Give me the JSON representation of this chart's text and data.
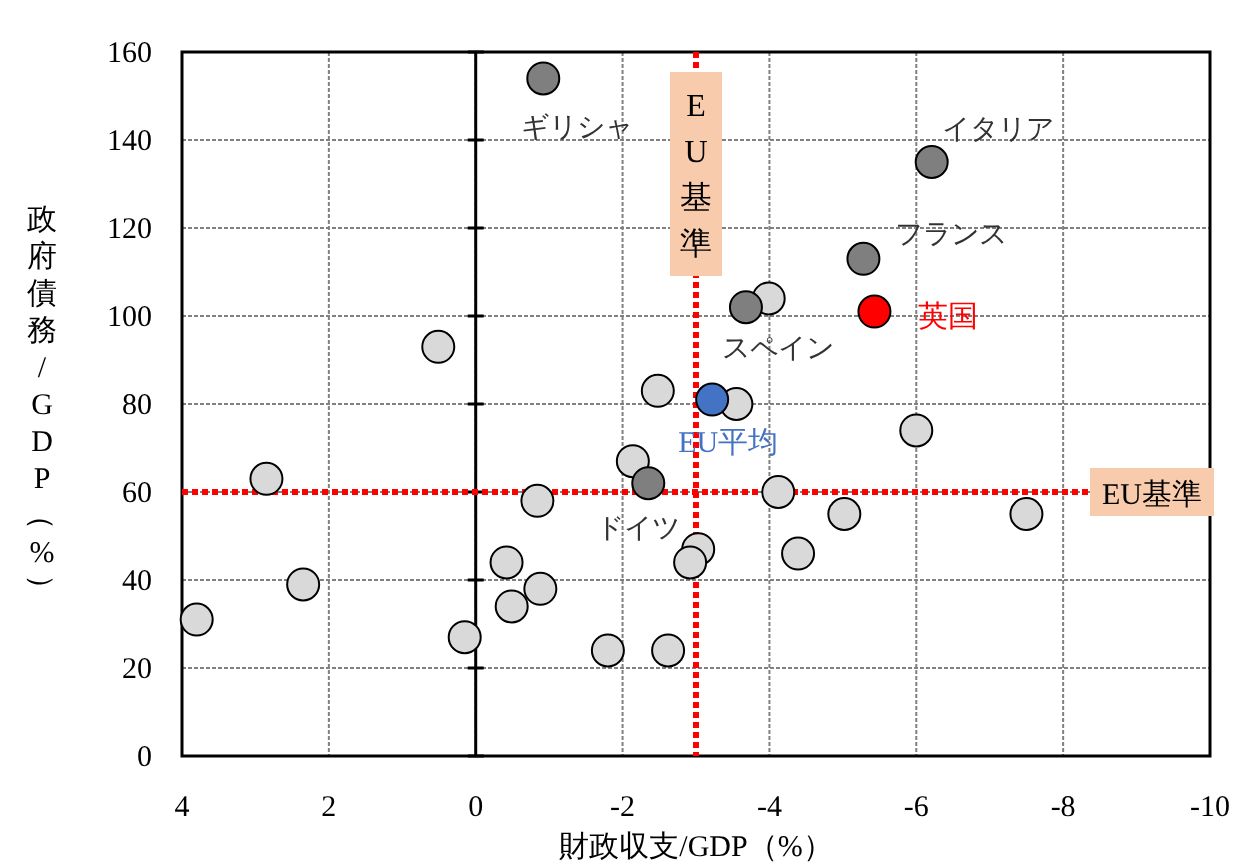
{
  "chart_data": {
    "type": "scatter",
    "xlabel": "財政収支/GDP（%）",
    "ylabel": "政府債務/GDP（%）",
    "xlim": [
      4,
      -10
    ],
    "xticks": [
      4,
      2,
      0,
      -2,
      -4,
      -6,
      -8,
      -10
    ],
    "ylim": [
      0,
      160
    ],
    "yticks": [
      0,
      20,
      40,
      60,
      80,
      100,
      120,
      140,
      160
    ],
    "grid": true,
    "marker": "circle",
    "series": [
      {
        "color": "#d9d9d9",
        "x": [
          -3.99,
          -2.48,
          -3.55,
          -6.0,
          -4.12,
          -5.02,
          -7.5,
          -4.39,
          -3.03,
          -2.92,
          -2.62,
          2.85,
          2.35,
          3.8,
          0.15,
          -0.42,
          -0.49,
          -0.84,
          -0.88,
          -1.8,
          -2.14,
          0.51
        ],
        "values": [
          104,
          83,
          80,
          74,
          60,
          55,
          55,
          46,
          47,
          44,
          24,
          63,
          39,
          31,
          27,
          44,
          34,
          58,
          38,
          24,
          67,
          93
        ]
      },
      {
        "color": "#7f7f7f",
        "x": [
          -0.92,
          -6.21,
          -5.28,
          -3.68,
          -2.35
        ],
        "values": [
          154,
          135,
          113,
          102,
          62
        ]
      },
      {
        "name": "英国",
        "color": "#ff0000",
        "x": [
          -5.43
        ],
        "values": [
          101
        ]
      },
      {
        "name": "EU平均",
        "color": "#4472c4",
        "x": [
          -3.22
        ],
        "values": [
          81
        ]
      }
    ],
    "annotations": [
      {
        "text": "ギリシャ",
        "x": -0.92,
        "y": 154
      },
      {
        "text": "イタリア",
        "x": -6.21,
        "y": 135
      },
      {
        "text": "フランス",
        "x": -5.28,
        "y": 113
      },
      {
        "text": "スペイン",
        "x": -3.68,
        "y": 102
      },
      {
        "text": "ドイツ",
        "x": -2.35,
        "y": 62
      }
    ],
    "ref_lines": [
      {
        "axis": "x",
        "value": 0,
        "color": "#000000",
        "line_style": "solid"
      },
      {
        "axis": "x",
        "value": -3,
        "label": "EU基準",
        "color": "#ff0000",
        "line_style": "dotted"
      },
      {
        "axis": "y",
        "value": 60,
        "label": "EU基準",
        "color": "#ff0000",
        "line_style": "dotted"
      }
    ]
  }
}
